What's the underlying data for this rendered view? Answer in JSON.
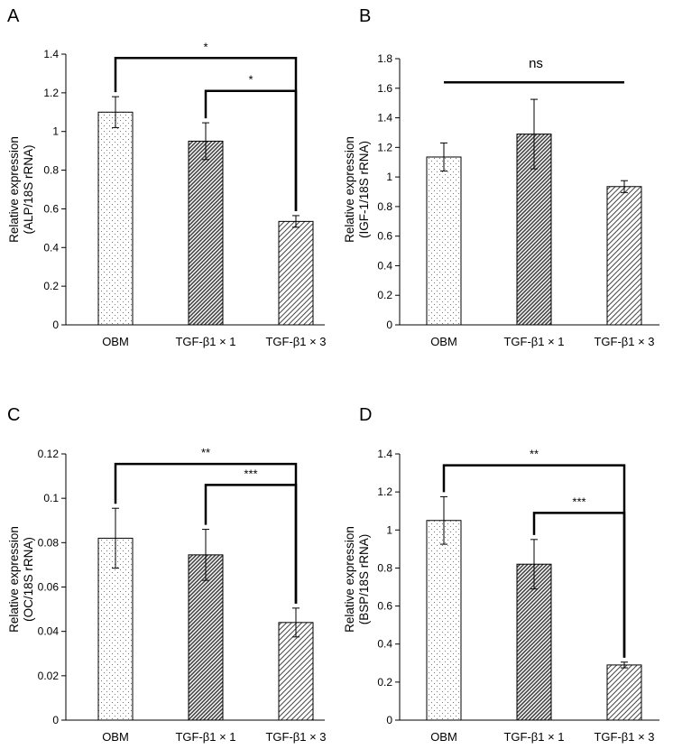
{
  "figure": {
    "panel_letters": [
      "A",
      "B",
      "C",
      "D"
    ]
  },
  "chart_data": [
    {
      "panel": "A",
      "type": "bar",
      "categories": [
        "OBM",
        "TGF-β1 × 1",
        "TGF-β1 × 3"
      ],
      "values": [
        1.1,
        0.95,
        0.535
      ],
      "errors": [
        0.08,
        0.095,
        0.03
      ],
      "ylabel_line1": "Relative expression",
      "ylabel_line2": "(ALP/18S rRNA)",
      "ylim": [
        0,
        1.4
      ],
      "yticks": [
        0,
        0.2,
        0.4,
        0.6,
        0.8,
        1,
        1.2,
        1.4
      ],
      "ytick_labels": [
        "0",
        "0.2",
        "0.4",
        "0.6",
        "0.8",
        "1",
        "1.2",
        "1.4"
      ],
      "significance": [
        {
          "from": 0,
          "to": 2,
          "label": "*",
          "level": 1.38
        },
        {
          "from": 1,
          "to": 2,
          "label": "*",
          "level": 1.21
        }
      ]
    },
    {
      "panel": "B",
      "type": "bar",
      "categories": [
        "OBM",
        "TGF-β1 × 1",
        "TGF-β1 × 3"
      ],
      "values": [
        1.135,
        1.29,
        0.935
      ],
      "errors": [
        0.095,
        0.235,
        0.04
      ],
      "ylabel_line1": "Relative expression",
      "ylabel_line2": "(IGF-1/18S rRNA)",
      "ylim": [
        0,
        1.8
      ],
      "yticks": [
        0,
        0.2,
        0.4,
        0.6,
        0.8,
        1,
        1.2,
        1.4,
        1.6,
        1.8
      ],
      "ytick_labels": [
        "0",
        "0.2",
        "0.4",
        "0.6",
        "0.8",
        "1",
        "1.2",
        "1.4",
        "1.6",
        "1.8"
      ],
      "significance": [
        {
          "from": 0,
          "to": 2,
          "label": "ns",
          "level": 1.64,
          "flat": true
        }
      ]
    },
    {
      "panel": "C",
      "type": "bar",
      "categories": [
        "OBM",
        "TGF-β1 × 1",
        "TGF-β1 × 3"
      ],
      "values": [
        0.082,
        0.0745,
        0.044
      ],
      "errors": [
        0.0135,
        0.0115,
        0.0065
      ],
      "ylabel_line1": "Relative expression",
      "ylabel_line2": "(OC/18S rRNA)",
      "ylim": [
        0,
        0.12
      ],
      "yticks": [
        0,
        0.02,
        0.04,
        0.06,
        0.08,
        0.1,
        0.12
      ],
      "ytick_labels": [
        "0",
        "0.02",
        "0.04",
        "0.06",
        "0.08",
        "0.1",
        "0.12"
      ],
      "significance": [
        {
          "from": 0,
          "to": 2,
          "label": "**",
          "level": 0.1155
        },
        {
          "from": 1,
          "to": 2,
          "label": "***",
          "level": 0.106
        }
      ]
    },
    {
      "panel": "D",
      "type": "bar",
      "categories": [
        "OBM",
        "TGF-β1 × 1",
        "TGF-β1 × 3"
      ],
      "values": [
        1.05,
        0.82,
        0.29
      ],
      "errors": [
        0.125,
        0.13,
        0.015
      ],
      "ylabel_line1": "Relative expression",
      "ylabel_line2": "(BSP/18S rRNA)",
      "ylim": [
        0,
        1.4
      ],
      "yticks": [
        0,
        0.2,
        0.4,
        0.6,
        0.8,
        1,
        1.2,
        1.4
      ],
      "ytick_labels": [
        "0",
        "0.2",
        "0.4",
        "0.6",
        "0.8",
        "1",
        "1.2",
        "1.4"
      ],
      "significance": [
        {
          "from": 0,
          "to": 2,
          "label": "**",
          "level": 1.34
        },
        {
          "from": 1,
          "to": 2,
          "label": "***",
          "level": 1.09
        }
      ]
    }
  ]
}
